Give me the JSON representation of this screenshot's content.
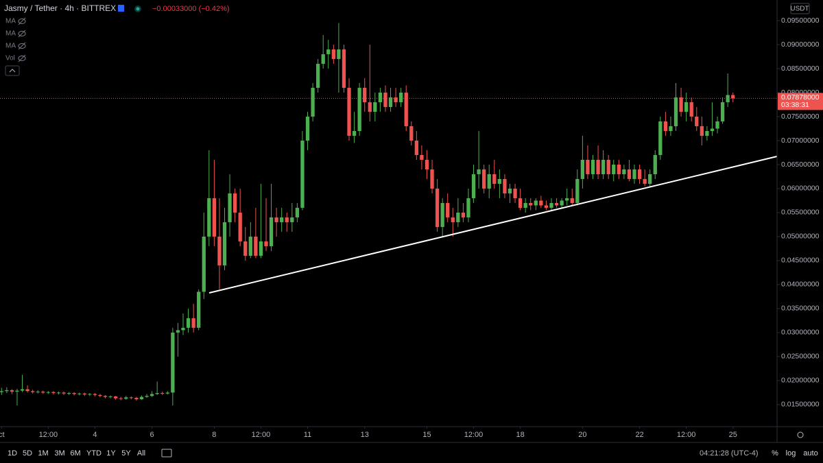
{
  "header": {
    "symbol": "Jasmy / Tether · 4h · BITTREX",
    "change": "−0.00033000 (−0.42%)",
    "indicators": [
      "MA",
      "MA",
      "MA",
      "Vol"
    ]
  },
  "chart_data": {
    "type": "candlestick",
    "ohlc": [
      [
        0.0176,
        0.0185,
        0.017,
        0.0178
      ],
      [
        0.0178,
        0.0186,
        0.0174,
        0.018
      ],
      [
        0.018,
        0.0182,
        0.0172,
        0.0177
      ],
      [
        0.0177,
        0.0183,
        0.0148,
        0.0179
      ],
      [
        0.0179,
        0.0212,
        0.0176,
        0.0182
      ],
      [
        0.0182,
        0.019,
        0.0175,
        0.0178
      ],
      [
        0.0178,
        0.0181,
        0.0173,
        0.0176
      ],
      [
        0.0176,
        0.018,
        0.0173,
        0.0177
      ],
      [
        0.0177,
        0.0179,
        0.0172,
        0.0175
      ],
      [
        0.0175,
        0.0178,
        0.0172,
        0.0176
      ],
      [
        0.0176,
        0.0178,
        0.0171,
        0.0174
      ],
      [
        0.0174,
        0.0177,
        0.0171,
        0.0175
      ],
      [
        0.0175,
        0.0177,
        0.017,
        0.0173
      ],
      [
        0.0173,
        0.0176,
        0.017,
        0.0174
      ],
      [
        0.0174,
        0.0176,
        0.0169,
        0.0172
      ],
      [
        0.0172,
        0.0175,
        0.0169,
        0.0173
      ],
      [
        0.0173,
        0.0175,
        0.0168,
        0.0171
      ],
      [
        0.0171,
        0.0174,
        0.0168,
        0.0172
      ],
      [
        0.0172,
        0.0174,
        0.0167,
        0.017
      ],
      [
        0.017,
        0.0172,
        0.0165,
        0.0168
      ],
      [
        0.0168,
        0.017,
        0.0163,
        0.0166
      ],
      [
        0.0166,
        0.0169,
        0.0163,
        0.0167
      ],
      [
        0.0167,
        0.0168,
        0.016,
        0.0163
      ],
      [
        0.0163,
        0.0166,
        0.0159,
        0.0162
      ],
      [
        0.0162,
        0.0168,
        0.016,
        0.0165
      ],
      [
        0.0165,
        0.0167,
        0.0161,
        0.0164
      ],
      [
        0.0164,
        0.0166,
        0.0158,
        0.0161
      ],
      [
        0.0161,
        0.0169,
        0.016,
        0.0166
      ],
      [
        0.0166,
        0.0172,
        0.0164,
        0.0168
      ],
      [
        0.0168,
        0.0178,
        0.0166,
        0.0172
      ],
      [
        0.0172,
        0.0198,
        0.017,
        0.0174
      ],
      [
        0.0174,
        0.0177,
        0.017,
        0.0173
      ],
      [
        0.0173,
        0.0178,
        0.0171,
        0.0175
      ],
      [
        0.0175,
        0.031,
        0.0148,
        0.03
      ],
      [
        0.03,
        0.032,
        0.025,
        0.0305
      ],
      [
        0.0305,
        0.034,
        0.0295,
        0.031
      ],
      [
        0.031,
        0.035,
        0.03,
        0.033
      ],
      [
        0.033,
        0.036,
        0.03,
        0.031
      ],
      [
        0.031,
        0.039,
        0.0305,
        0.0385
      ],
      [
        0.0385,
        0.055,
        0.037,
        0.05
      ],
      [
        0.05,
        0.068,
        0.048,
        0.058
      ],
      [
        0.058,
        0.066,
        0.048,
        0.05
      ],
      [
        0.05,
        0.058,
        0.039,
        0.044
      ],
      [
        0.044,
        0.056,
        0.043,
        0.053
      ],
      [
        0.053,
        0.063,
        0.05,
        0.059
      ],
      [
        0.059,
        0.06,
        0.053,
        0.055
      ],
      [
        0.055,
        0.06,
        0.048,
        0.049
      ],
      [
        0.049,
        0.052,
        0.045,
        0.046
      ],
      [
        0.046,
        0.053,
        0.0455,
        0.05
      ],
      [
        0.05,
        0.056,
        0.0455,
        0.046
      ],
      [
        0.046,
        0.061,
        0.0455,
        0.049
      ],
      [
        0.049,
        0.058,
        0.047,
        0.048
      ],
      [
        0.048,
        0.061,
        0.047,
        0.054
      ],
      [
        0.054,
        0.056,
        0.05,
        0.053
      ],
      [
        0.053,
        0.056,
        0.051,
        0.054
      ],
      [
        0.054,
        0.055,
        0.051,
        0.053
      ],
      [
        0.053,
        0.057,
        0.051,
        0.054
      ],
      [
        0.054,
        0.057,
        0.053,
        0.056
      ],
      [
        0.056,
        0.072,
        0.0555,
        0.07
      ],
      [
        0.07,
        0.076,
        0.068,
        0.075
      ],
      [
        0.075,
        0.082,
        0.074,
        0.081
      ],
      [
        0.081,
        0.087,
        0.08,
        0.086
      ],
      [
        0.086,
        0.092,
        0.085,
        0.088
      ],
      [
        0.088,
        0.091,
        0.085,
        0.089
      ],
      [
        0.089,
        0.09,
        0.086,
        0.087
      ],
      [
        0.087,
        0.0945,
        0.08,
        0.089
      ],
      [
        0.089,
        0.09,
        0.08,
        0.081
      ],
      [
        0.081,
        0.083,
        0.07,
        0.071
      ],
      [
        0.071,
        0.076,
        0.0695,
        0.072
      ],
      [
        0.072,
        0.082,
        0.071,
        0.081
      ],
      [
        0.081,
        0.083,
        0.076,
        0.078
      ],
      [
        0.078,
        0.09,
        0.074,
        0.076
      ],
      [
        0.076,
        0.08,
        0.074,
        0.078
      ],
      [
        0.078,
        0.081,
        0.076,
        0.08
      ],
      [
        0.08,
        0.0815,
        0.076,
        0.077
      ],
      [
        0.077,
        0.081,
        0.076,
        0.079
      ],
      [
        0.079,
        0.081,
        0.077,
        0.078
      ],
      [
        0.078,
        0.081,
        0.077,
        0.08
      ],
      [
        0.08,
        0.0815,
        0.072,
        0.073
      ],
      [
        0.073,
        0.074,
        0.069,
        0.07
      ],
      [
        0.07,
        0.072,
        0.066,
        0.067
      ],
      [
        0.067,
        0.069,
        0.064,
        0.066
      ],
      [
        0.066,
        0.068,
        0.062,
        0.064
      ],
      [
        0.064,
        0.066,
        0.059,
        0.06
      ],
      [
        0.06,
        0.062,
        0.051,
        0.052
      ],
      [
        0.052,
        0.058,
        0.05,
        0.057
      ],
      [
        0.057,
        0.059,
        0.053,
        0.054
      ],
      [
        0.054,
        0.056,
        0.05,
        0.053
      ],
      [
        0.053,
        0.058,
        0.052,
        0.055
      ],
      [
        0.055,
        0.057,
        0.053,
        0.054
      ],
      [
        0.054,
        0.06,
        0.053,
        0.058
      ],
      [
        0.058,
        0.065,
        0.057,
        0.063
      ],
      [
        0.063,
        0.072,
        0.06,
        0.064
      ],
      [
        0.064,
        0.065,
        0.059,
        0.06
      ],
      [
        0.06,
        0.065,
        0.058,
        0.063
      ],
      [
        0.063,
        0.066,
        0.06,
        0.061
      ],
      [
        0.061,
        0.064,
        0.058,
        0.062
      ],
      [
        0.062,
        0.063,
        0.058,
        0.059
      ],
      [
        0.059,
        0.061,
        0.057,
        0.06
      ],
      [
        0.06,
        0.061,
        0.057,
        0.058
      ],
      [
        0.058,
        0.06,
        0.0555,
        0.056
      ],
      [
        0.056,
        0.058,
        0.055,
        0.057
      ],
      [
        0.057,
        0.058,
        0.0555,
        0.0565
      ],
      [
        0.0565,
        0.058,
        0.0555,
        0.0575
      ],
      [
        0.0575,
        0.0585,
        0.056,
        0.0565
      ],
      [
        0.0565,
        0.0575,
        0.0555,
        0.056
      ],
      [
        0.056,
        0.058,
        0.0555,
        0.057
      ],
      [
        0.057,
        0.058,
        0.056,
        0.0565
      ],
      [
        0.0565,
        0.058,
        0.056,
        0.0575
      ],
      [
        0.0575,
        0.06,
        0.0565,
        0.058
      ],
      [
        0.058,
        0.06,
        0.0565,
        0.057
      ],
      [
        0.057,
        0.064,
        0.0565,
        0.062
      ],
      [
        0.062,
        0.071,
        0.06,
        0.066
      ],
      [
        0.066,
        0.069,
        0.062,
        0.063
      ],
      [
        0.063,
        0.067,
        0.062,
        0.066
      ],
      [
        0.066,
        0.069,
        0.062,
        0.063
      ],
      [
        0.063,
        0.068,
        0.062,
        0.066
      ],
      [
        0.066,
        0.067,
        0.062,
        0.063
      ],
      [
        0.063,
        0.066,
        0.0615,
        0.065
      ],
      [
        0.065,
        0.066,
        0.062,
        0.063
      ],
      [
        0.063,
        0.065,
        0.062,
        0.064
      ],
      [
        0.064,
        0.066,
        0.0615,
        0.062
      ],
      [
        0.062,
        0.065,
        0.061,
        0.064
      ],
      [
        0.064,
        0.065,
        0.061,
        0.062
      ],
      [
        0.062,
        0.064,
        0.0605,
        0.061
      ],
      [
        0.061,
        0.064,
        0.0605,
        0.063
      ],
      [
        0.063,
        0.068,
        0.062,
        0.067
      ],
      [
        0.067,
        0.075,
        0.066,
        0.074
      ],
      [
        0.074,
        0.076,
        0.071,
        0.072
      ],
      [
        0.072,
        0.075,
        0.071,
        0.073
      ],
      [
        0.073,
        0.082,
        0.072,
        0.079
      ],
      [
        0.079,
        0.081,
        0.075,
        0.076
      ],
      [
        0.076,
        0.08,
        0.074,
        0.078
      ],
      [
        0.078,
        0.079,
        0.074,
        0.075
      ],
      [
        0.075,
        0.077,
        0.072,
        0.073
      ],
      [
        0.073,
        0.075,
        0.069,
        0.071
      ],
      [
        0.071,
        0.073,
        0.07,
        0.072
      ],
      [
        0.072,
        0.078,
        0.071,
        0.0725
      ],
      [
        0.0725,
        0.075,
        0.0715,
        0.074
      ],
      [
        0.074,
        0.079,
        0.0735,
        0.078
      ],
      [
        0.078,
        0.084,
        0.077,
        0.0795
      ],
      [
        0.0795,
        0.08,
        0.078,
        0.0788
      ]
    ],
    "up_color": "#4caf50",
    "down_color": "#ef5350",
    "xlim": [
      -0.3,
      149.5
    ],
    "xticks": [
      {
        "value": 0,
        "label": "ct"
      },
      {
        "value": 9,
        "label": "12:00"
      },
      {
        "value": 18,
        "label": "4"
      },
      {
        "value": 29,
        "label": "6"
      },
      {
        "value": 41,
        "label": "8"
      },
      {
        "value": 50,
        "label": "12:00"
      },
      {
        "value": 59,
        "label": "11"
      },
      {
        "value": 70,
        "label": "13"
      },
      {
        "value": 82,
        "label": "15"
      },
      {
        "value": 91,
        "label": "12:00"
      },
      {
        "value": 100,
        "label": "18"
      },
      {
        "value": 112,
        "label": "20"
      },
      {
        "value": 123,
        "label": "22"
      },
      {
        "value": 132,
        "label": "12:00"
      },
      {
        "value": 141,
        "label": "25"
      }
    ],
    "ylim": [
      0.0104,
      0.0993
    ],
    "yticks": [
      {
        "value": 0.015,
        "label": "0.01500000"
      },
      {
        "value": 0.02,
        "label": "0.02000000"
      },
      {
        "value": 0.025,
        "label": "0.02500000"
      },
      {
        "value": 0.03,
        "label": "0.03000000"
      },
      {
        "value": 0.035,
        "label": "0.03500000"
      },
      {
        "value": 0.04,
        "label": "0.04000000"
      },
      {
        "value": 0.045,
        "label": "0.04500000"
      },
      {
        "value": 0.05,
        "label": "0.05000000"
      },
      {
        "value": 0.055,
        "label": "0.05500000"
      },
      {
        "value": 0.06,
        "label": "0.06000000"
      },
      {
        "value": 0.065,
        "label": "0.06500000"
      },
      {
        "value": 0.07,
        "label": "0.07000000"
      },
      {
        "value": 0.075,
        "label": "0.07500000"
      },
      {
        "value": 0.08,
        "label": "0.08000000"
      },
      {
        "value": 0.085,
        "label": "0.08500000"
      },
      {
        "value": 0.09,
        "label": "0.09000000"
      },
      {
        "value": 0.095,
        "label": "0.09500000"
      }
    ],
    "currency": "USDT",
    "last_price_label": "0.07878000",
    "countdown": "03:38:31"
  },
  "toolbar": {
    "ranges": [
      "1D",
      "5D",
      "1M",
      "3M",
      "6M",
      "YTD",
      "1Y",
      "5Y",
      "All"
    ],
    "time": "04:21:28 (UTC-4)",
    "options": [
      "%",
      "log",
      "auto"
    ]
  }
}
